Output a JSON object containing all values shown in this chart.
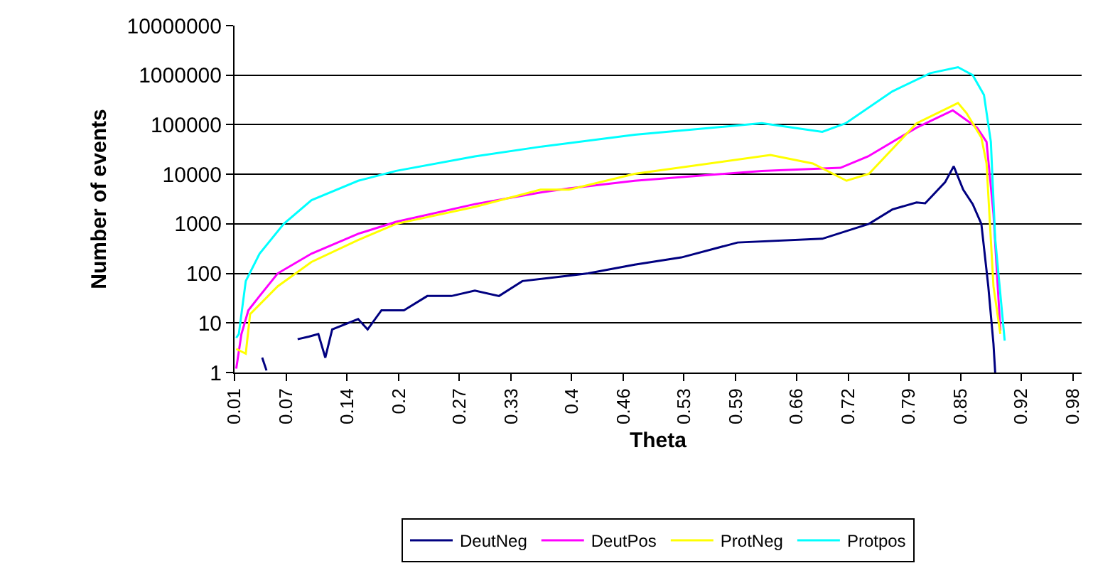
{
  "chart_data": {
    "type": "line",
    "xlabel": "Theta",
    "ylabel": "Number of events",
    "log": "y",
    "grid": "y",
    "legend": "bottom",
    "line_style": "solid",
    "marker": "none",
    "xlim": [
      0.01,
      0.99
    ],
    "xticks": [
      0.01,
      0.07,
      0.14,
      0.2,
      0.27,
      0.33,
      0.4,
      0.46,
      0.53,
      0.59,
      0.66,
      0.72,
      0.79,
      0.85,
      0.92,
      0.98
    ],
    "ylim": [
      1,
      10000000
    ],
    "yticks": [
      1,
      10,
      100,
      1000,
      10000,
      100000,
      1000000,
      10000000
    ],
    "series": [
      {
        "name": "DeutNeg",
        "color": "#000080",
        "x": [
          0.042,
          0.047,
          0.067,
          0.083,
          0.096,
          0.107,
          0.115,
          0.123,
          0.153,
          0.164,
          0.18,
          0.206,
          0.233,
          0.261,
          0.288,
          0.316,
          0.343,
          0.397,
          0.419,
          0.473,
          0.527,
          0.592,
          0.69,
          0.744,
          0.771,
          0.799,
          0.809,
          0.832,
          0.842,
          0.853,
          0.864,
          0.874,
          0.882,
          0.888,
          0.89
        ],
        "values": [
          2,
          1.1,
          null,
          4.7,
          5.3,
          6,
          2,
          7.4,
          12,
          7.4,
          18,
          18,
          35,
          35,
          45,
          35,
          70,
          90,
          100,
          150,
          210,
          420,
          500,
          1000,
          1950,
          2700,
          2600,
          6900,
          14500,
          4900,
          2500,
          1000,
          55,
          3.8,
          1
        ]
      },
      {
        "name": "DeutPos",
        "color": "#ff00ff",
        "x": [
          0.012,
          0.018,
          0.026,
          0.039,
          0.06,
          0.099,
          0.153,
          0.197,
          0.288,
          0.364,
          0.397,
          0.473,
          0.62,
          0.711,
          0.743,
          0.799,
          0.841,
          0.869,
          0.88,
          0.888,
          0.896
        ],
        "values": [
          1.2,
          6,
          18,
          35,
          100,
          250,
          630,
          1100,
          2500,
          4300,
          5200,
          7400,
          11700,
          13500,
          23000,
          87000,
          195000,
          87000,
          45000,
          1600,
          7
        ]
      },
      {
        "name": "ProtNeg",
        "color": "#ffff00",
        "x": [
          0.012,
          0.023,
          0.028,
          0.06,
          0.099,
          0.153,
          0.197,
          0.288,
          0.364,
          0.397,
          0.473,
          0.63,
          0.679,
          0.718,
          0.744,
          0.799,
          0.847,
          0.857,
          0.874,
          0.88,
          0.888,
          0.896
        ],
        "values": [
          3,
          2.4,
          15,
          55,
          170,
          470,
          1000,
          2200,
          4900,
          4900,
          10200,
          24500,
          16500,
          7400,
          10200,
          107000,
          275000,
          170000,
          55000,
          16500,
          55,
          6
        ]
      },
      {
        "name": "Protpos",
        "color": "#00ffff",
        "x": [
          0.012,
          0.015,
          0.023,
          0.039,
          0.067,
          0.099,
          0.153,
          0.197,
          0.288,
          0.364,
          0.473,
          0.62,
          0.69,
          0.717,
          0.771,
          0.815,
          0.847,
          0.864,
          0.877,
          0.885,
          0.89,
          0.901
        ],
        "values": [
          5,
          6,
          70,
          250,
          1000,
          3000,
          7400,
          11700,
          23000,
          36000,
          63000,
          107000,
          72000,
          107000,
          470000,
          1100000,
          1450000,
          1000000,
          400000,
          45000,
          500,
          4.4
        ]
      }
    ]
  }
}
